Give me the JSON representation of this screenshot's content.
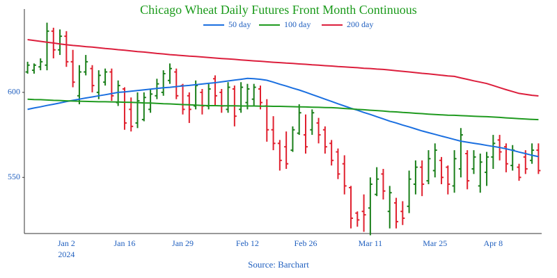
{
  "chart_data": {
    "type": "ohlc",
    "title": "Chicago Wheat Daily Futures Front Month Continuous",
    "title_color": "#1a9a1a",
    "source": "Source: Barchart",
    "source_color": "#1f5fbf",
    "categories": [
      null,
      null,
      null,
      null,
      null,
      null,
      "Jan 2",
      null,
      null,
      null,
      null,
      null,
      null,
      null,
      null,
      "Jan 16",
      null,
      null,
      null,
      null,
      null,
      null,
      null,
      null,
      "Jan 29",
      null,
      null,
      null,
      null,
      null,
      null,
      null,
      null,
      null,
      "Feb 12",
      null,
      null,
      null,
      null,
      null,
      null,
      null,
      null,
      "Feb 26",
      null,
      null,
      null,
      null,
      null,
      null,
      null,
      null,
      null,
      "Mar 11",
      null,
      null,
      null,
      null,
      null,
      null,
      null,
      null,
      null,
      "Mar 25",
      null,
      null,
      null,
      null,
      null,
      null,
      null,
      null,
      "Apr 8",
      null,
      null,
      null,
      null,
      null,
      null,
      null
    ],
    "year_label": "2024",
    "up_color": "#1a7f1a",
    "down_color": "#e0202e",
    "ohlc": {
      "open": [
        612,
        613,
        615,
        616,
        636,
        625,
        633,
        618,
        598,
        612,
        614,
        600,
        606,
        612,
        594,
        602,
        590,
        582,
        584,
        590,
        598,
        600,
        607,
        612,
        604,
        598,
        592,
        600,
        592,
        608,
        600,
        590,
        602,
        590,
        594,
        596,
        602,
        592,
        578,
        570,
        568,
        566,
        576,
        575,
        578,
        582,
        578,
        570,
        565,
        558,
        544,
        529,
        530,
        532,
        540,
        552,
        530,
        535,
        530,
        533,
        546,
        556,
        548,
        554,
        560,
        556,
        545,
        555,
        564,
        555,
        545,
        553,
        562,
        572,
        568,
        557,
        556,
        562,
        560,
        566
      ],
      "high": [
        618,
        617,
        620,
        641,
        638,
        637,
        636,
        625,
        616,
        622,
        616,
        613,
        614,
        614,
        607,
        603,
        597,
        600,
        600,
        602,
        608,
        613,
        617,
        614,
        605,
        600,
        607,
        602,
        605,
        610,
        602,
        606,
        604,
        606,
        605,
        605,
        604,
        596,
        586,
        572,
        577,
        580,
        593,
        587,
        590,
        585,
        580,
        572,
        567,
        563,
        545,
        530,
        540,
        550,
        556,
        555,
        545,
        538,
        536,
        554,
        560,
        560,
        566,
        570,
        562,
        557,
        566,
        579,
        566,
        566,
        564,
        565,
        575,
        575,
        570,
        569,
        558,
        566,
        570,
        570
      ],
      "low": [
        611,
        611,
        613,
        613,
        620,
        622,
        615,
        603,
        593,
        610,
        600,
        596,
        604,
        595,
        592,
        578,
        577,
        579,
        583,
        588,
        596,
        598,
        605,
        596,
        587,
        582,
        590,
        587,
        590,
        592,
        588,
        588,
        580,
        588,
        590,
        592,
        590,
        571,
        566,
        554,
        555,
        565,
        575,
        564,
        575,
        570,
        564,
        557,
        549,
        540,
        520,
        521,
        518,
        516,
        539,
        537,
        520,
        520,
        522,
        529,
        540,
        539,
        546,
        550,
        546,
        540,
        541,
        550,
        543,
        552,
        541,
        545,
        555,
        560,
        553,
        554,
        548,
        552,
        558,
        552
      ],
      "close": [
        616,
        616,
        618,
        636,
        625,
        633,
        618,
        606,
        612,
        618,
        604,
        610,
        612,
        598,
        604,
        582,
        580,
        595,
        597,
        599,
        605,
        611,
        614,
        598,
        590,
        590,
        604,
        592,
        602,
        598,
        592,
        603,
        586,
        603,
        602,
        603,
        594,
        578,
        570,
        560,
        558,
        578,
        588,
        568,
        588,
        575,
        568,
        560,
        552,
        545,
        526,
        525,
        528,
        546,
        549,
        542,
        541,
        524,
        526,
        549,
        556,
        546,
        561,
        566,
        550,
        546,
        561,
        575,
        548,
        562,
        559,
        562,
        570,
        565,
        558,
        566,
        550,
        555,
        566,
        554
      ]
    },
    "series": [
      {
        "name": "50 day",
        "color": "#1a6fe0",
        "values": [
          590,
          590.8,
          591.5,
          592.3,
          593,
          593.8,
          594.6,
          595.3,
          596,
          596.7,
          597.3,
          598,
          598.6,
          599.3,
          600,
          600.3,
          600.7,
          601.1,
          601.5,
          601.9,
          602.3,
          602.7,
          603,
          603.4,
          603.8,
          604.1,
          604.5,
          604.9,
          605.3,
          605.7,
          606.2,
          606.7,
          607.2,
          607.7,
          608.2,
          608,
          607.7,
          607.1,
          606,
          604.8,
          603.7,
          602.5,
          601.4,
          600.1,
          598.7,
          597.4,
          596,
          594.7,
          593.3,
          592,
          590.7,
          589.5,
          588.2,
          587,
          585.7,
          584.4,
          583.1,
          582,
          580.8,
          579.7,
          578.5,
          577.3,
          576.3,
          575.3,
          574.3,
          573.3,
          572.3,
          571.3,
          570.7,
          570.1,
          569.5,
          568.8,
          568.2,
          567.6,
          566.8,
          565.9,
          564.9,
          564,
          563,
          562.2
        ]
      },
      {
        "name": "100 day",
        "color": "#1f9a1f",
        "values": [
          596,
          595.8,
          595.7,
          595.5,
          595.3,
          595.2,
          595,
          594.9,
          594.8,
          594.7,
          594.6,
          594.5,
          594.5,
          594.4,
          594.3,
          594.2,
          594.1,
          594,
          593.8,
          593.7,
          593.5,
          593.3,
          593.2,
          593,
          592.8,
          592.7,
          592.5,
          592.3,
          592.2,
          592.2,
          592.1,
          592.1,
          592.1,
          592,
          592,
          592,
          591.9,
          591.9,
          591.8,
          591.8,
          591.7,
          591.6,
          591.5,
          591.4,
          591.3,
          591.2,
          591.1,
          591,
          590.8,
          590.5,
          590.3,
          590,
          589.8,
          589.5,
          589.3,
          589,
          588.7,
          588.5,
          588.2,
          588,
          587.7,
          587.5,
          587.2,
          587,
          586.8,
          586.6,
          586.5,
          586.3,
          586.2,
          586,
          585.8,
          585.7,
          585.5,
          585.3,
          585,
          584.8,
          584.5,
          584.3,
          584.1,
          584
        ]
      },
      {
        "name": "200 day",
        "color": "#dc1e3c",
        "values": [
          631,
          630.5,
          630,
          629.5,
          629,
          628.5,
          628,
          627.6,
          627.3,
          626.9,
          626.6,
          626.2,
          625.8,
          625.5,
          625.1,
          624.8,
          624.4,
          624,
          623.7,
          623.3,
          622.9,
          622.6,
          622.2,
          621.9,
          621.6,
          621.3,
          621.1,
          620.8,
          620.5,
          620.2,
          619.9,
          619.7,
          619.4,
          619.1,
          618.8,
          618.5,
          618.3,
          618,
          617.7,
          617.5,
          617.2,
          617,
          616.7,
          616.5,
          616.2,
          616,
          615.7,
          615.5,
          615.2,
          615,
          614.7,
          614.5,
          614.2,
          614,
          613.7,
          613.5,
          613.1,
          612.7,
          612.4,
          612,
          611.6,
          611.2,
          610.9,
          610.5,
          610.1,
          609.7,
          609.4,
          608.5,
          607.7,
          606.8,
          606,
          605.2,
          604,
          602.8,
          601.6,
          600.5,
          599.4,
          598.8,
          598.3,
          597.9
        ]
      }
    ],
    "ylim": [
      517,
      649
    ],
    "yticks": [
      550,
      600
    ],
    "legend": "top"
  }
}
